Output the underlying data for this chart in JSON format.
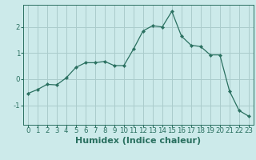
{
  "x": [
    0,
    1,
    2,
    3,
    4,
    5,
    6,
    7,
    8,
    9,
    10,
    11,
    12,
    13,
    14,
    15,
    16,
    17,
    18,
    19,
    20,
    21,
    22,
    23
  ],
  "y": [
    -0.55,
    -0.4,
    -0.2,
    -0.22,
    0.05,
    0.45,
    0.63,
    0.63,
    0.68,
    0.52,
    0.52,
    1.15,
    1.85,
    2.05,
    2.0,
    2.6,
    1.65,
    1.3,
    1.25,
    0.93,
    0.93,
    -0.45,
    -1.2,
    -1.42
  ],
  "line_color": "#2a7060",
  "marker": "D",
  "marker_size": 2.2,
  "bg_color": "#cceaea",
  "grid_color": "#aacccc",
  "xlabel": "Humidex (Indice chaleur)",
  "ylabel": "",
  "title": "",
  "xlim": [
    -0.5,
    23.5
  ],
  "ylim": [
    -1.75,
    2.85
  ],
  "yticks": [
    -1,
    0,
    1,
    2
  ],
  "xticks": [
    0,
    1,
    2,
    3,
    4,
    5,
    6,
    7,
    8,
    9,
    10,
    11,
    12,
    13,
    14,
    15,
    16,
    17,
    18,
    19,
    20,
    21,
    22,
    23
  ],
  "tick_fontsize": 6.2,
  "xlabel_fontsize": 8.0,
  "tick_color": "#2a7060",
  "spine_color": "#2a7060"
}
